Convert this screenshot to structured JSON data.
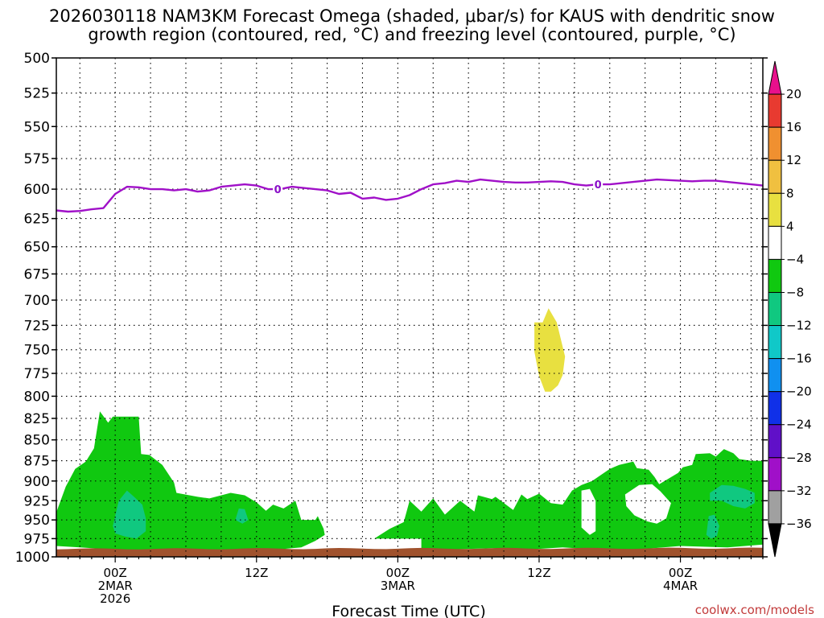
{
  "chart_data": {
    "type": "heatmap",
    "title_lines": [
      "2026030118 NAM3KM Forecast Omega (shaded, μbar/s) for KAUS with dendritic snow",
      "growth region (contoured, red, °C) and freezing level (contoured, purple, °C)"
    ],
    "xlabel": "Forecast Time (UTC)",
    "credit": "coolwx.com/models",
    "x_range_hours": [
      -5,
      55
    ],
    "y_range_mb": [
      500,
      1000
    ],
    "y_ticks": [
      500,
      525,
      550,
      575,
      600,
      625,
      650,
      675,
      700,
      725,
      750,
      775,
      800,
      825,
      850,
      875,
      900,
      925,
      950,
      975,
      1000
    ],
    "x_ticks": [
      {
        "hour": 0,
        "lines": [
          "00Z",
          "2MAR",
          "2026"
        ]
      },
      {
        "hour": 12,
        "lines": [
          "12Z"
        ]
      },
      {
        "hour": 24,
        "lines": [
          "00Z",
          "3MAR"
        ]
      },
      {
        "hour": 36,
        "lines": [
          "12Z"
        ]
      },
      {
        "hour": 48,
        "lines": [
          "00Z",
          "4MAR"
        ]
      }
    ],
    "colorbar": {
      "labels": [
        "20",
        "16",
        "12",
        "8",
        "4",
        "−4",
        "−8",
        "−12",
        "−16",
        "−20",
        "−24",
        "−28",
        "−32",
        "−36"
      ],
      "colors": [
        "#e8108c",
        "#e83a30",
        "#f09030",
        "#f0c040",
        "#e8e040",
        "#ffffff",
        "#10c810",
        "#10c880",
        "#10c8c8",
        "#1090f0",
        "#1030e8",
        "#6010c8",
        "#a010c8",
        "#a0a0a0",
        "#000000"
      ]
    },
    "freezing_level": {
      "label": "0",
      "color": "#a010c8",
      "label_hours": [
        13.8,
        41
      ],
      "points": [
        [
          -5,
          618
        ],
        [
          -4,
          619
        ],
        [
          -3,
          618.5
        ],
        [
          -2,
          617
        ],
        [
          -1,
          616
        ],
        [
          0,
          604
        ],
        [
          1,
          598
        ],
        [
          2,
          598.5
        ],
        [
          3,
          600
        ],
        [
          4,
          600
        ],
        [
          5,
          601
        ],
        [
          6,
          600
        ],
        [
          7,
          602
        ],
        [
          8,
          601
        ],
        [
          9,
          598
        ],
        [
          10,
          597
        ],
        [
          11,
          596
        ],
        [
          12,
          597
        ],
        [
          13,
          600
        ],
        [
          14,
          600
        ],
        [
          15,
          598
        ],
        [
          16,
          599
        ],
        [
          17,
          600
        ],
        [
          18,
          601
        ],
        [
          19,
          604
        ],
        [
          20,
          603
        ],
        [
          21,
          608
        ],
        [
          22,
          607
        ],
        [
          23,
          609
        ],
        [
          24,
          608
        ],
        [
          25,
          605
        ],
        [
          26,
          600
        ],
        [
          27,
          596
        ],
        [
          28,
          595
        ],
        [
          29,
          593
        ],
        [
          30,
          594
        ],
        [
          31,
          592
        ],
        [
          32,
          593
        ],
        [
          33,
          594
        ],
        [
          34,
          594.5
        ],
        [
          35,
          594.5
        ],
        [
          36,
          594
        ],
        [
          37,
          593.5
        ],
        [
          38,
          594
        ],
        [
          39,
          596
        ],
        [
          40,
          597
        ],
        [
          41,
          596
        ],
        [
          42,
          596
        ],
        [
          43,
          595
        ],
        [
          44,
          594
        ],
        [
          45,
          593
        ],
        [
          46,
          592
        ],
        [
          47,
          592.5
        ],
        [
          48,
          593
        ],
        [
          49,
          593.5
        ],
        [
          50,
          593
        ],
        [
          51,
          593
        ],
        [
          52,
          594
        ],
        [
          53,
          595
        ],
        [
          54,
          596
        ],
        [
          55,
          597
        ]
      ]
    },
    "omega_regions": [
      {
        "category": "-8 to -4",
        "color": "#10c810",
        "points": [
          [
            -5,
            940
          ],
          [
            -4.2,
            907
          ],
          [
            -3.4,
            885
          ],
          [
            -2.5,
            876
          ],
          [
            -1.8,
            860
          ],
          [
            -1.3,
            817
          ],
          [
            -0.6,
            830
          ],
          [
            -0.2,
            823
          ],
          [
            1,
            823
          ],
          [
            2,
            823
          ],
          [
            2.2,
            867
          ],
          [
            2.9,
            868
          ],
          [
            4,
            880
          ],
          [
            5,
            902
          ],
          [
            5.2,
            915
          ],
          [
            7,
            920
          ],
          [
            8,
            922
          ],
          [
            9.8,
            915
          ],
          [
            11,
            918
          ],
          [
            12,
            927
          ],
          [
            12.8,
            938
          ],
          [
            13.4,
            930
          ],
          [
            14.3,
            935
          ],
          [
            15.3,
            925
          ],
          [
            15.8,
            950
          ],
          [
            17,
            950
          ],
          [
            17.2,
            945
          ],
          [
            17.7,
            962
          ],
          [
            17.8,
            970
          ],
          [
            17,
            978
          ],
          [
            15.8,
            987
          ],
          [
            13,
            991
          ],
          [
            10,
            993
          ],
          [
            6,
            991
          ],
          [
            3,
            993
          ],
          [
            0,
            990
          ],
          [
            -3,
            987
          ],
          [
            -5,
            985
          ]
        ]
      },
      {
        "category": "-8 to -4",
        "color": "#10c810",
        "points": [
          [
            19.5,
            978
          ],
          [
            22,
            975
          ],
          [
            23.3,
            962
          ],
          [
            24.5,
            953
          ],
          [
            25,
            925
          ],
          [
            26,
            939
          ],
          [
            27,
            922
          ],
          [
            28,
            943
          ],
          [
            29.3,
            925
          ],
          [
            30.5,
            939
          ],
          [
            30.8,
            918
          ],
          [
            32,
            923
          ],
          [
            32.3,
            920
          ],
          [
            33.8,
            937
          ],
          [
            34.5,
            917
          ],
          [
            35,
            923
          ],
          [
            36,
            916
          ],
          [
            37,
            928
          ],
          [
            38,
            930
          ],
          [
            38.8,
            912
          ],
          [
            39.6,
            905
          ],
          [
            40.5,
            900
          ],
          [
            41.3,
            892
          ],
          [
            42,
            885
          ],
          [
            42.8,
            880
          ],
          [
            44,
            876
          ],
          [
            44.3,
            884
          ],
          [
            45.3,
            886
          ],
          [
            45.8,
            895
          ],
          [
            46.2,
            904
          ],
          [
            47.8,
            890
          ],
          [
            48.2,
            883
          ],
          [
            49,
            880
          ],
          [
            49.3,
            867
          ],
          [
            50.5,
            866
          ],
          [
            51,
            870
          ],
          [
            51.7,
            861
          ],
          [
            52.5,
            866
          ],
          [
            53,
            873
          ],
          [
            54,
            875
          ],
          [
            55,
            875
          ],
          [
            55,
            983
          ],
          [
            52,
            987
          ],
          [
            48,
            985
          ],
          [
            45,
            989
          ],
          [
            42,
            991
          ],
          [
            38,
            987
          ],
          [
            35,
            990
          ],
          [
            32,
            988
          ],
          [
            28,
            990
          ],
          [
            24,
            990
          ],
          [
            21,
            991
          ],
          [
            19.5,
            987
          ]
        ]
      },
      {
        "category": "-12 to -8",
        "color": "#10c880",
        "points": [
          [
            -0.2,
            958
          ],
          [
            0.3,
            925
          ],
          [
            1,
            912
          ],
          [
            1.6,
            920
          ],
          [
            2.3,
            930
          ],
          [
            2.6,
            948
          ],
          [
            2.6,
            965
          ],
          [
            1.8,
            975
          ],
          [
            0.8,
            972
          ],
          [
            0,
            968
          ]
        ]
      },
      {
        "category": "-12 to -8",
        "color": "#10c880",
        "points": [
          [
            10.2,
            950
          ],
          [
            10.5,
            935
          ],
          [
            11,
            936
          ],
          [
            11.3,
            950
          ],
          [
            10.8,
            955
          ]
        ]
      },
      {
        "category": "-12 to -8",
        "color": "#10c880",
        "points": [
          [
            50.5,
            915
          ],
          [
            51.5,
            905
          ],
          [
            52.5,
            906
          ],
          [
            53.5,
            910
          ],
          [
            54.3,
            915
          ],
          [
            54.3,
            928
          ],
          [
            53.5,
            935
          ],
          [
            52.5,
            932
          ],
          [
            51.5,
            925
          ],
          [
            50.5,
            925
          ]
        ]
      },
      {
        "category": "-12 to -8",
        "color": "#10c880",
        "points": [
          [
            50.2,
            970
          ],
          [
            50.4,
            945
          ],
          [
            50.9,
            943
          ],
          [
            51.3,
            958
          ],
          [
            51.1,
            972
          ],
          [
            50.6,
            975
          ]
        ]
      },
      {
        "category": "4 to 8",
        "color": "#e8e040",
        "points": [
          [
            35.6,
            722
          ],
          [
            36.3,
            722
          ],
          [
            36.8,
            708
          ],
          [
            37.5,
            722
          ],
          [
            38.2,
            757
          ],
          [
            38.0,
            777
          ],
          [
            37.6,
            788
          ],
          [
            37.0,
            795
          ],
          [
            36.5,
            795
          ],
          [
            36.0,
            778
          ],
          [
            35.6,
            752
          ]
        ]
      }
    ],
    "white_gaps": [
      {
        "category": "-4 to 4",
        "color": "#ffffff",
        "points": [
          [
            43.3,
            917
          ],
          [
            44.5,
            905
          ],
          [
            45.6,
            904
          ],
          [
            46.3,
            913
          ],
          [
            47.2,
            928
          ],
          [
            46.8,
            948
          ],
          [
            46,
            955
          ],
          [
            45.2,
            952
          ],
          [
            44.1,
            944
          ],
          [
            43.4,
            932
          ]
        ]
      },
      {
        "category": "-4 to 4",
        "color": "#ffffff",
        "points": [
          [
            19.5,
            940
          ],
          [
            20.5,
            940
          ],
          [
            20.5,
            960
          ],
          [
            19.5,
            960
          ]
        ]
      },
      {
        "category": "-4 to 4",
        "color": "#ffffff",
        "points": [
          [
            39.6,
            912
          ],
          [
            40.3,
            910
          ],
          [
            40.8,
            925
          ],
          [
            40.8,
            965
          ],
          [
            40.3,
            970
          ],
          [
            39.6,
            960
          ]
        ]
      },
      {
        "category": "-4 to 4",
        "color": "#ffffff",
        "points": [
          [
            18,
            975
          ],
          [
            26,
            975
          ],
          [
            26,
            990
          ],
          [
            18,
            990
          ]
        ]
      }
    ],
    "ground": {
      "color": "#a0522d",
      "top_mb_left": 989,
      "top_mb_right": 988
    }
  }
}
